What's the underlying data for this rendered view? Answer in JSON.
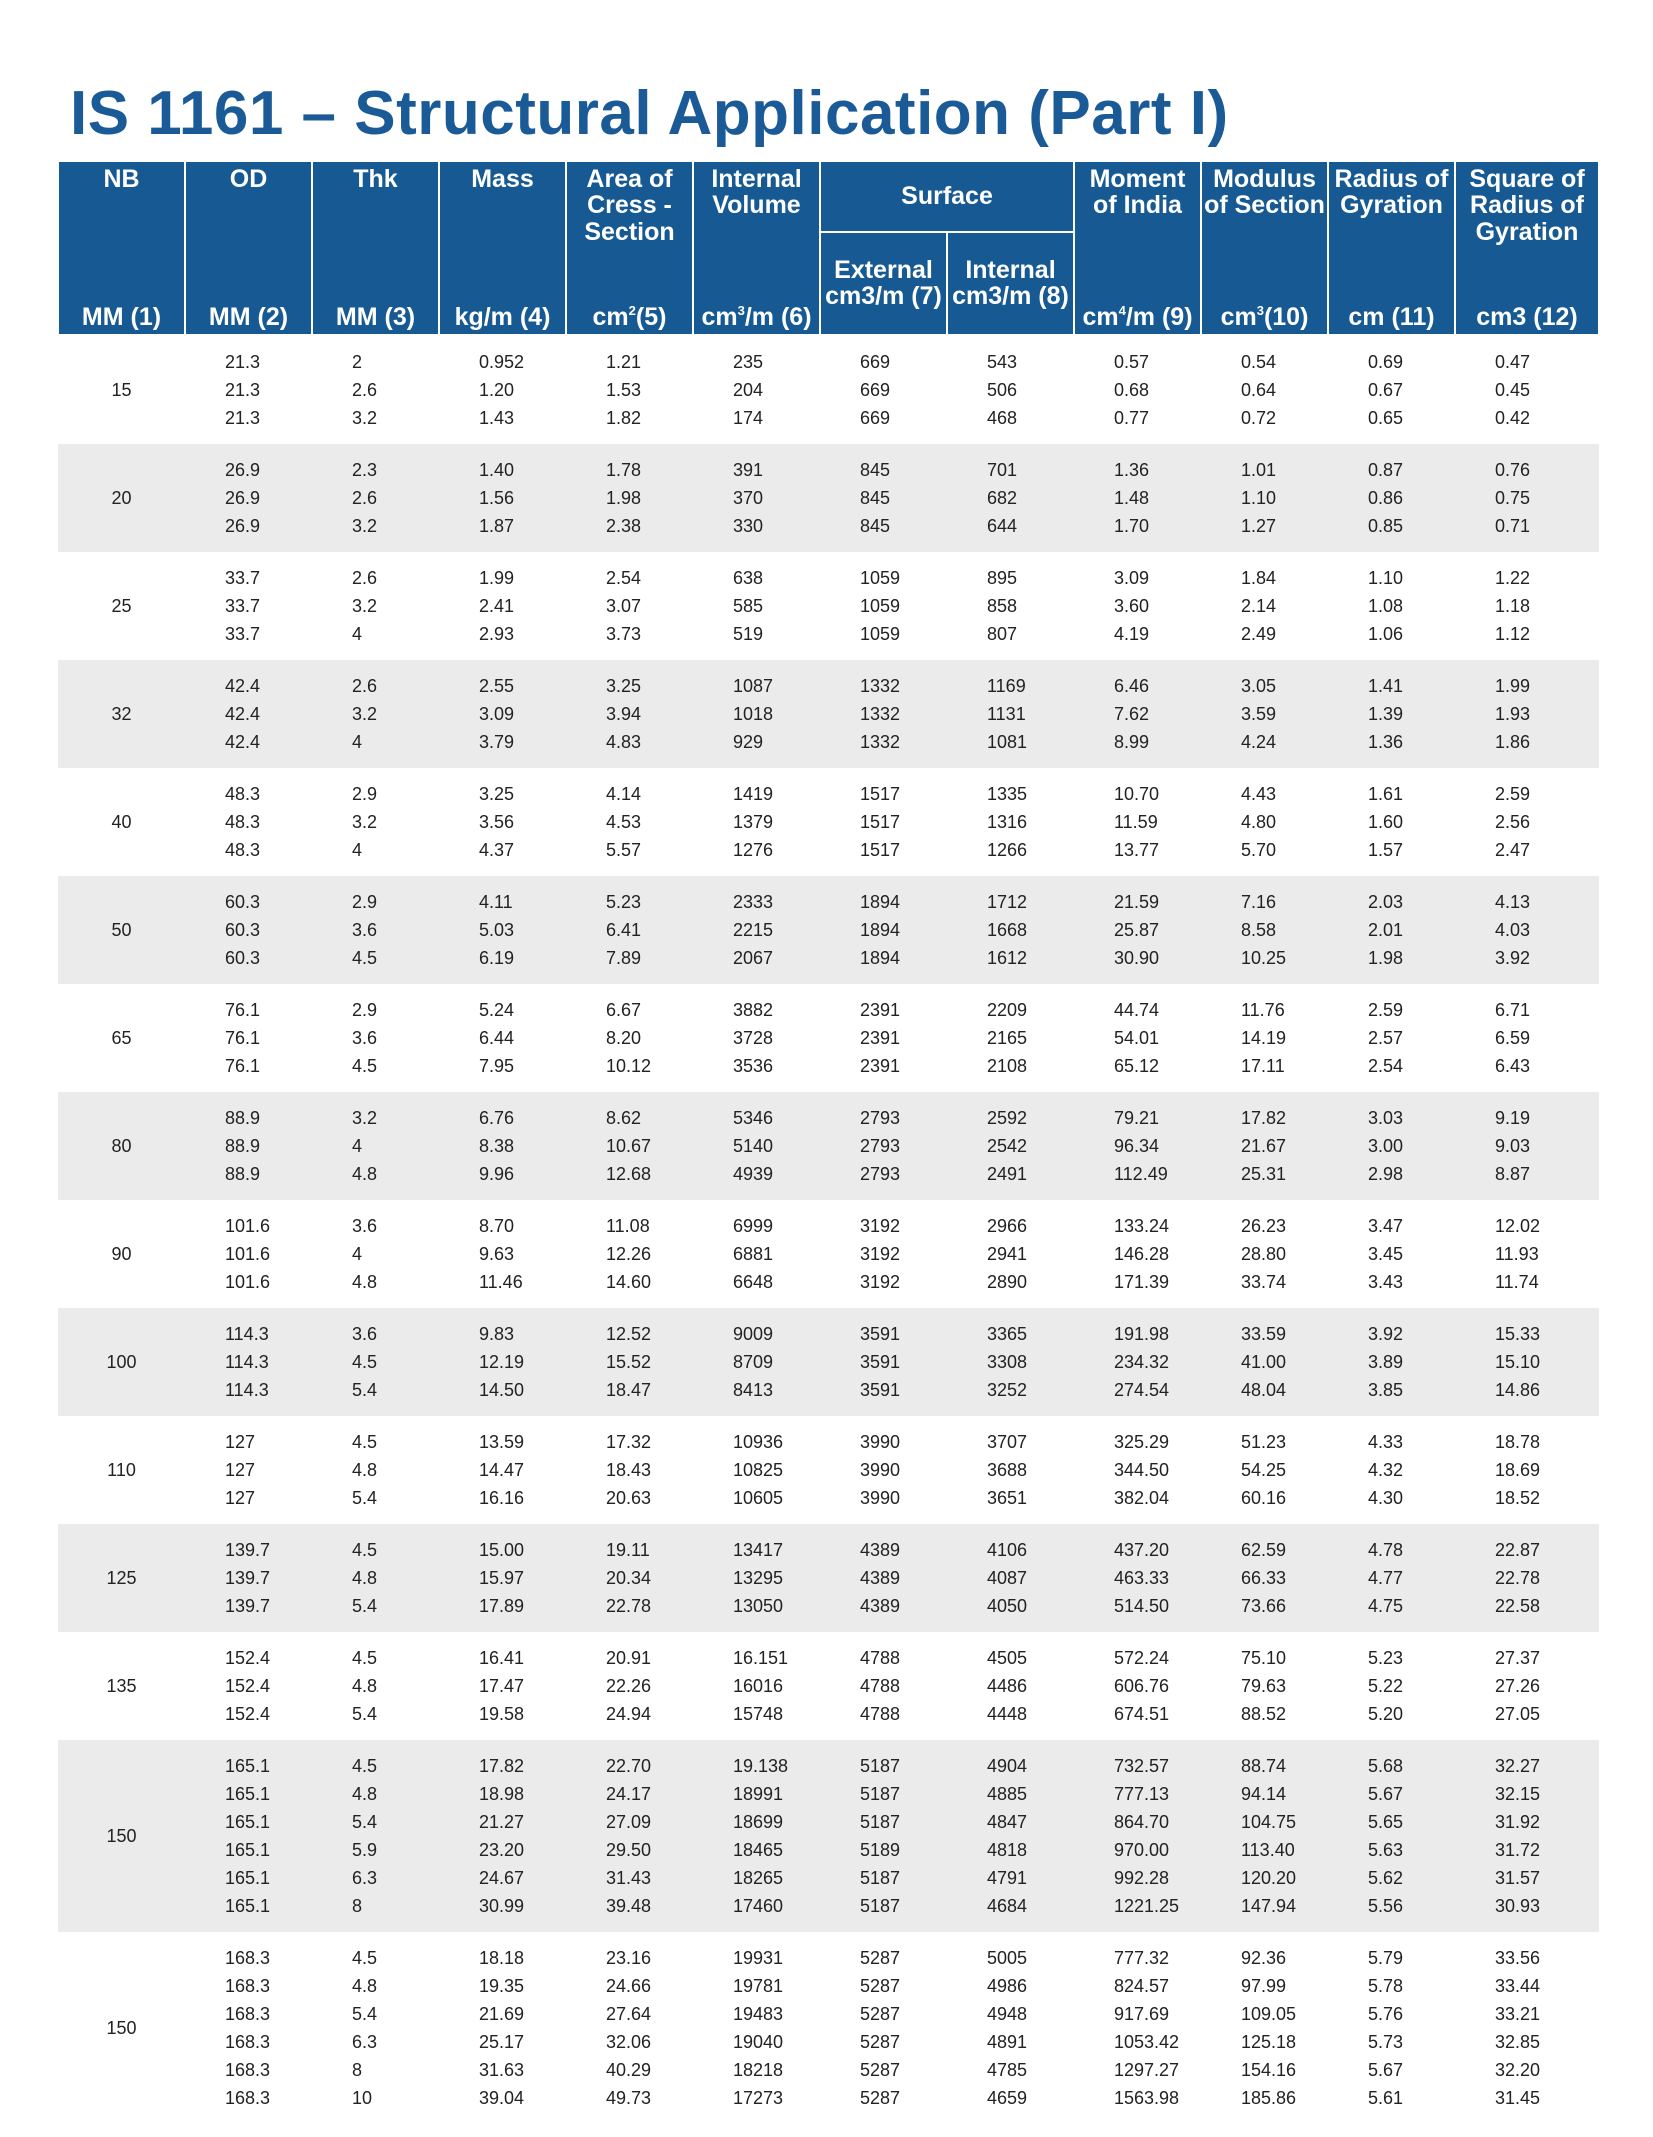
{
  "header": {
    "title": "IS 1161 – Structural Application (Part I)"
  },
  "table": {
    "columns": [
      {
        "label": "NB",
        "unit": "MM (1)"
      },
      {
        "label": "OD",
        "unit": "MM (2)"
      },
      {
        "label": "Thk",
        "unit": "MM (3)"
      },
      {
        "label": "Mass",
        "unit": "kg/m (4)"
      },
      {
        "label": "Area of Cress - Section",
        "unit": {
          "base": "cm",
          "sup": "2",
          "rest": "(5)"
        }
      },
      {
        "label": "Internal Volume",
        "unit": {
          "base": "cm",
          "sup": "3",
          "rest": "/m (6)"
        }
      },
      {
        "label": "Surface",
        "sub": [
          {
            "label": "External",
            "unit": "cm3/m (7)"
          },
          {
            "label": "Internal",
            "unit": "cm3/m (8)"
          }
        ]
      },
      {
        "label": "Moment of India",
        "unit": {
          "base": "cm",
          "sup": "4",
          "rest": "/m (9)"
        }
      },
      {
        "label": "Modulus of Section",
        "unit": {
          "base": "cm",
          "sup": "3",
          "rest": "(10)"
        }
      },
      {
        "label": "Radius of Gyration",
        "unit": "cm (11)"
      },
      {
        "label": "Square of Radius of Gyration",
        "unit": "cm3 (12)"
      }
    ],
    "groups": [
      {
        "nb": "15",
        "rows": [
          [
            "21.3",
            "2",
            "0.952",
            "1.21",
            "235",
            "669",
            "543",
            "0.57",
            "0.54",
            "0.69",
            "0.47"
          ],
          [
            "21.3",
            "2.6",
            "1.20",
            "1.53",
            "204",
            "669",
            "506",
            "0.68",
            "0.64",
            "0.67",
            "0.45"
          ],
          [
            "21.3",
            "3.2",
            "1.43",
            "1.82",
            "174",
            "669",
            "468",
            "0.77",
            "0.72",
            "0.65",
            "0.42"
          ]
        ]
      },
      {
        "nb": "20",
        "rows": [
          [
            "26.9",
            "2.3",
            "1.40",
            "1.78",
            "391",
            "845",
            "701",
            "1.36",
            "1.01",
            "0.87",
            "0.76"
          ],
          [
            "26.9",
            "2.6",
            "1.56",
            "1.98",
            "370",
            "845",
            "682",
            "1.48",
            "1.10",
            "0.86",
            "0.75"
          ],
          [
            "26.9",
            "3.2",
            "1.87",
            "2.38",
            "330",
            "845",
            "644",
            "1.70",
            "1.27",
            "0.85",
            "0.71"
          ]
        ]
      },
      {
        "nb": "25",
        "rows": [
          [
            "33.7",
            "2.6",
            "1.99",
            "2.54",
            "638",
            "1059",
            "895",
            "3.09",
            "1.84",
            "1.10",
            "1.22"
          ],
          [
            "33.7",
            "3.2",
            "2.41",
            "3.07",
            "585",
            "1059",
            "858",
            "3.60",
            "2.14",
            "1.08",
            "1.18"
          ],
          [
            "33.7",
            "4",
            "2.93",
            "3.73",
            "519",
            "1059",
            "807",
            "4.19",
            "2.49",
            "1.06",
            "1.12"
          ]
        ]
      },
      {
        "nb": "32",
        "rows": [
          [
            "42.4",
            "2.6",
            "2.55",
            "3.25",
            "1087",
            "1332",
            "1169",
            "6.46",
            "3.05",
            "1.41",
            "1.99"
          ],
          [
            "42.4",
            "3.2",
            "3.09",
            "3.94",
            "1018",
            "1332",
            "1131",
            "7.62",
            "3.59",
            "1.39",
            "1.93"
          ],
          [
            "42.4",
            "4",
            "3.79",
            "4.83",
            "929",
            "1332",
            "1081",
            "8.99",
            "4.24",
            "1.36",
            "1.86"
          ]
        ]
      },
      {
        "nb": "40",
        "rows": [
          [
            "48.3",
            "2.9",
            "3.25",
            "4.14",
            "1419",
            "1517",
            "1335",
            "10.70",
            "4.43",
            "1.61",
            "2.59"
          ],
          [
            "48.3",
            "3.2",
            "3.56",
            "4.53",
            "1379",
            "1517",
            "1316",
            "11.59",
            "4.80",
            "1.60",
            "2.56"
          ],
          [
            "48.3",
            "4",
            "4.37",
            "5.57",
            "1276",
            "1517",
            "1266",
            "13.77",
            "5.70",
            "1.57",
            "2.47"
          ]
        ]
      },
      {
        "nb": "50",
        "rows": [
          [
            "60.3",
            "2.9",
            "4.11",
            "5.23",
            "2333",
            "1894",
            "1712",
            "21.59",
            "7.16",
            "2.03",
            "4.13"
          ],
          [
            "60.3",
            "3.6",
            "5.03",
            "6.41",
            "2215",
            "1894",
            "1668",
            "25.87",
            "8.58",
            "2.01",
            "4.03"
          ],
          [
            "60.3",
            "4.5",
            "6.19",
            "7.89",
            "2067",
            "1894",
            "1612",
            "30.90",
            "10.25",
            "1.98",
            "3.92"
          ]
        ]
      },
      {
        "nb": "65",
        "rows": [
          [
            "76.1",
            "2.9",
            "5.24",
            "6.67",
            "3882",
            "2391",
            "2209",
            "44.74",
            "11.76",
            "2.59",
            "6.71"
          ],
          [
            "76.1",
            "3.6",
            "6.44",
            "8.20",
            "3728",
            "2391",
            "2165",
            "54.01",
            "14.19",
            "2.57",
            "6.59"
          ],
          [
            "76.1",
            "4.5",
            "7.95",
            "10.12",
            "3536",
            "2391",
            "2108",
            "65.12",
            "17.11",
            "2.54",
            "6.43"
          ]
        ]
      },
      {
        "nb": "80",
        "rows": [
          [
            "88.9",
            "3.2",
            "6.76",
            "8.62",
            "5346",
            "2793",
            "2592",
            "79.21",
            "17.82",
            "3.03",
            "9.19"
          ],
          [
            "88.9",
            "4",
            "8.38",
            "10.67",
            "5140",
            "2793",
            "2542",
            "96.34",
            "21.67",
            "3.00",
            "9.03"
          ],
          [
            "88.9",
            "4.8",
            "9.96",
            "12.68",
            "4939",
            "2793",
            "2491",
            "112.49",
            "25.31",
            "2.98",
            "8.87"
          ]
        ]
      },
      {
        "nb": "90",
        "rows": [
          [
            "101.6",
            "3.6",
            "8.70",
            "11.08",
            "6999",
            "3192",
            "2966",
            "133.24",
            "26.23",
            "3.47",
            "12.02"
          ],
          [
            "101.6",
            "4",
            "9.63",
            "12.26",
            "6881",
            "3192",
            "2941",
            "146.28",
            "28.80",
            "3.45",
            "11.93"
          ],
          [
            "101.6",
            "4.8",
            "11.46",
            "14.60",
            "6648",
            "3192",
            "2890",
            "171.39",
            "33.74",
            "3.43",
            "11.74"
          ]
        ]
      },
      {
        "nb": "100",
        "rows": [
          [
            "114.3",
            "3.6",
            "9.83",
            "12.52",
            "9009",
            "3591",
            "3365",
            "191.98",
            "33.59",
            "3.92",
            "15.33"
          ],
          [
            "114.3",
            "4.5",
            "12.19",
            "15.52",
            "8709",
            "3591",
            "3308",
            "234.32",
            "41.00",
            "3.89",
            "15.10"
          ],
          [
            "114.3",
            "5.4",
            "14.50",
            "18.47",
            "8413",
            "3591",
            "3252",
            "274.54",
            "48.04",
            "3.85",
            "14.86"
          ]
        ]
      },
      {
        "nb": "110",
        "rows": [
          [
            "127",
            "4.5",
            "13.59",
            "17.32",
            "10936",
            "3990",
            "3707",
            "325.29",
            "51.23",
            "4.33",
            "18.78"
          ],
          [
            "127",
            "4.8",
            "14.47",
            "18.43",
            "10825",
            "3990",
            "3688",
            "344.50",
            "54.25",
            "4.32",
            "18.69"
          ],
          [
            "127",
            "5.4",
            "16.16",
            "20.63",
            "10605",
            "3990",
            "3651",
            "382.04",
            "60.16",
            "4.30",
            "18.52"
          ]
        ]
      },
      {
        "nb": "125",
        "rows": [
          [
            "139.7",
            "4.5",
            "15.00",
            "19.11",
            "13417",
            "4389",
            "4106",
            "437.20",
            "62.59",
            "4.78",
            "22.87"
          ],
          [
            "139.7",
            "4.8",
            "15.97",
            "20.34",
            "13295",
            "4389",
            "4087",
            "463.33",
            "66.33",
            "4.77",
            "22.78"
          ],
          [
            "139.7",
            "5.4",
            "17.89",
            "22.78",
            "13050",
            "4389",
            "4050",
            "514.50",
            "73.66",
            "4.75",
            "22.58"
          ]
        ]
      },
      {
        "nb": "135",
        "rows": [
          [
            "152.4",
            "4.5",
            "16.41",
            "20.91",
            "16.151",
            "4788",
            "4505",
            "572.24",
            "75.10",
            "5.23",
            "27.37"
          ],
          [
            "152.4",
            "4.8",
            "17.47",
            "22.26",
            "16016",
            "4788",
            "4486",
            "606.76",
            "79.63",
            "5.22",
            "27.26"
          ],
          [
            "152.4",
            "5.4",
            "19.58",
            "24.94",
            "15748",
            "4788",
            "4448",
            "674.51",
            "88.52",
            "5.20",
            "27.05"
          ]
        ]
      },
      {
        "nb": "150",
        "rows": [
          [
            "165.1",
            "4.5",
            "17.82",
            "22.70",
            "19.138",
            "5187",
            "4904",
            "732.57",
            "88.74",
            "5.68",
            "32.27"
          ],
          [
            "165.1",
            "4.8",
            "18.98",
            "24.17",
            "18991",
            "5187",
            "4885",
            "777.13",
            "94.14",
            "5.67",
            "32.15"
          ],
          [
            "165.1",
            "5.4",
            "21.27",
            "27.09",
            "18699",
            "5187",
            "4847",
            "864.70",
            "104.75",
            "5.65",
            "31.92"
          ],
          [
            "165.1",
            "5.9",
            "23.20",
            "29.50",
            "18465",
            "5189",
            "4818",
            "970.00",
            "113.40",
            "5.63",
            "31.72"
          ],
          [
            "165.1",
            "6.3",
            "24.67",
            "31.43",
            "18265",
            "5187",
            "4791",
            "992.28",
            "120.20",
            "5.62",
            "31.57"
          ],
          [
            "165.1",
            "8",
            "30.99",
            "39.48",
            "17460",
            "5187",
            "4684",
            "1221.25",
            "147.94",
            "5.56",
            "30.93"
          ]
        ]
      },
      {
        "nb": "150",
        "rows": [
          [
            "168.3",
            "4.5",
            "18.18",
            "23.16",
            "19931",
            "5287",
            "5005",
            "777.32",
            "92.36",
            "5.79",
            "33.56"
          ],
          [
            "168.3",
            "4.8",
            "19.35",
            "24.66",
            "19781",
            "5287",
            "4986",
            "824.57",
            "97.99",
            "5.78",
            "33.44"
          ],
          [
            "168.3",
            "5.4",
            "21.69",
            "27.64",
            "19483",
            "5287",
            "4948",
            "917.69",
            "109.05",
            "5.76",
            "33.21"
          ],
          [
            "168.3",
            "6.3",
            "25.17",
            "32.06",
            "19040",
            "5287",
            "4891",
            "1053.42",
            "125.18",
            "5.73",
            "32.85"
          ],
          [
            "168.3",
            "8",
            "31.63",
            "40.29",
            "18218",
            "5287",
            "4785",
            "1297.27",
            "154.16",
            "5.67",
            "32.20"
          ],
          [
            "168.3",
            "10",
            "39.04",
            "49.73",
            "17273",
            "5287",
            "4659",
            "1563.98",
            "185.86",
            "5.61",
            "31.45"
          ]
        ]
      }
    ]
  }
}
